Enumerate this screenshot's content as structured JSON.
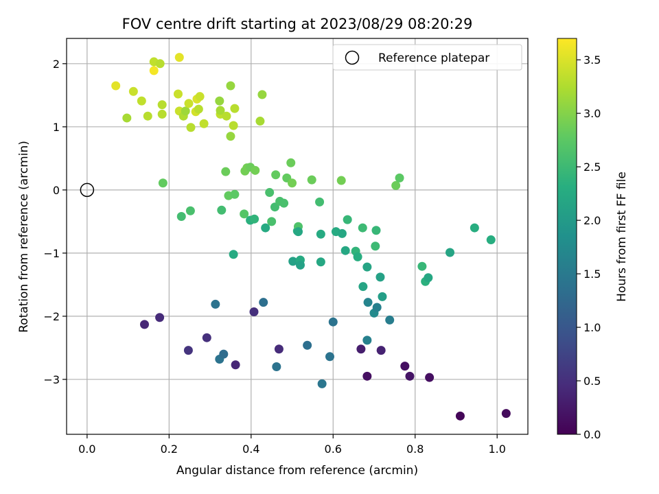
{
  "chart_data": {
    "type": "scatter",
    "title": "FOV centre drift starting at 2023/08/29 08:20:29",
    "xlabel": "Angular distance from reference (arcmin)",
    "ylabel": "Rotation from reference (arcmin)",
    "xlim": [
      -0.05,
      1.075
    ],
    "ylim": [
      -3.87,
      2.4
    ],
    "x_ticks": [
      0.0,
      0.2,
      0.4,
      0.6,
      0.8,
      1.0
    ],
    "x_tick_labels": [
      "0.0",
      "0.2",
      "0.4",
      "0.6",
      "0.8",
      "1.0"
    ],
    "y_ticks": [
      -3,
      -2,
      -1,
      0,
      1,
      2
    ],
    "y_tick_labels": [
      "−3",
      "−2",
      "−1",
      "0",
      "1",
      "2"
    ],
    "grid": true,
    "colormap": "viridis",
    "colorbar": {
      "label": "Hours from first FF file",
      "range": [
        0.0,
        3.7
      ],
      "ticks": [
        0.0,
        0.5,
        1.0,
        1.5,
        2.0,
        2.5,
        3.0,
        3.5
      ],
      "tick_labels": [
        "0.0",
        "0.5",
        "1.0",
        "1.5",
        "2.0",
        "2.5",
        "3.0",
        "3.5"
      ]
    },
    "legend": {
      "placement": "top-right",
      "entries": [
        "Reference platepar"
      ]
    },
    "reference_point": {
      "x": 0.0,
      "y": 0.0,
      "name": "Reference platepar"
    },
    "points": [
      {
        "x": 0.07,
        "y": 1.65,
        "c": 3.55
      },
      {
        "x": 0.097,
        "y": 1.14,
        "c": 3.2
      },
      {
        "x": 0.113,
        "y": 1.56,
        "c": 3.4
      },
      {
        "x": 0.133,
        "y": 1.41,
        "c": 3.35
      },
      {
        "x": 0.148,
        "y": 1.17,
        "c": 3.3
      },
      {
        "x": 0.163,
        "y": 2.03,
        "c": 3.35
      },
      {
        "x": 0.163,
        "y": 1.89,
        "c": 3.65
      },
      {
        "x": 0.178,
        "y": 2.0,
        "c": 3.3
      },
      {
        "x": 0.183,
        "y": 1.35,
        "c": 3.3
      },
      {
        "x": 0.183,
        "y": 1.2,
        "c": 3.3
      },
      {
        "x": 0.222,
        "y": 1.52,
        "c": 3.4
      },
      {
        "x": 0.225,
        "y": 2.1,
        "c": 3.55
      },
      {
        "x": 0.225,
        "y": 1.25,
        "c": 3.4
      },
      {
        "x": 0.235,
        "y": 1.17,
        "c": 3.25
      },
      {
        "x": 0.24,
        "y": 1.25,
        "c": 3.15
      },
      {
        "x": 0.248,
        "y": 1.37,
        "c": 3.4
      },
      {
        "x": 0.253,
        "y": 0.99,
        "c": 3.3
      },
      {
        "x": 0.265,
        "y": 1.24,
        "c": 3.45
      },
      {
        "x": 0.268,
        "y": 1.44,
        "c": 3.5
      },
      {
        "x": 0.272,
        "y": 1.28,
        "c": 3.3
      },
      {
        "x": 0.275,
        "y": 1.48,
        "c": 3.4
      },
      {
        "x": 0.285,
        "y": 1.05,
        "c": 3.35
      },
      {
        "x": 0.323,
        "y": 1.41,
        "c": 3.1
      },
      {
        "x": 0.325,
        "y": 1.2,
        "c": 3.35
      },
      {
        "x": 0.325,
        "y": 1.26,
        "c": 3.2
      },
      {
        "x": 0.34,
        "y": 1.17,
        "c": 3.3
      },
      {
        "x": 0.35,
        "y": 1.65,
        "c": 3.1
      },
      {
        "x": 0.35,
        "y": 0.85,
        "c": 3.1
      },
      {
        "x": 0.357,
        "y": 1.02,
        "c": 3.3
      },
      {
        "x": 0.36,
        "y": 1.29,
        "c": 3.3
      },
      {
        "x": 0.422,
        "y": 1.09,
        "c": 3.2
      },
      {
        "x": 0.427,
        "y": 1.51,
        "c": 3.1
      },
      {
        "x": 0.185,
        "y": 0.11,
        "c": 2.8
      },
      {
        "x": 0.23,
        "y": -0.42,
        "c": 2.55
      },
      {
        "x": 0.252,
        "y": -0.33,
        "c": 2.6
      },
      {
        "x": 0.328,
        "y": -0.32,
        "c": 2.55
      },
      {
        "x": 0.338,
        "y": 0.29,
        "c": 2.85
      },
      {
        "x": 0.345,
        "y": -0.09,
        "c": 2.8
      },
      {
        "x": 0.36,
        "y": -0.07,
        "c": 2.75
      },
      {
        "x": 0.357,
        "y": -1.02,
        "c": 2.25
      },
      {
        "x": 0.383,
        "y": -0.38,
        "c": 2.7
      },
      {
        "x": 0.385,
        "y": 0.3,
        "c": 2.9
      },
      {
        "x": 0.39,
        "y": 0.35,
        "c": 2.9
      },
      {
        "x": 0.398,
        "y": 0.36,
        "c": 2.85
      },
      {
        "x": 0.398,
        "y": -0.48,
        "c": 2.35
      },
      {
        "x": 0.408,
        "y": -0.46,
        "c": 2.4
      },
      {
        "x": 0.41,
        "y": 0.31,
        "c": 2.9
      },
      {
        "x": 0.435,
        "y": -0.6,
        "c": 2.25
      },
      {
        "x": 0.445,
        "y": -0.04,
        "c": 2.6
      },
      {
        "x": 0.45,
        "y": -0.5,
        "c": 2.6
      },
      {
        "x": 0.458,
        "y": -0.27,
        "c": 2.55
      },
      {
        "x": 0.46,
        "y": 0.24,
        "c": 2.8
      },
      {
        "x": 0.47,
        "y": -0.18,
        "c": 2.6
      },
      {
        "x": 0.48,
        "y": -0.21,
        "c": 2.6
      },
      {
        "x": 0.487,
        "y": 0.19,
        "c": 2.8
      },
      {
        "x": 0.497,
        "y": 0.43,
        "c": 2.85
      },
      {
        "x": 0.5,
        "y": 0.11,
        "c": 2.9
      },
      {
        "x": 0.502,
        "y": -1.13,
        "c": 2.1
      },
      {
        "x": 0.513,
        "y": -0.65,
        "c": 2.3
      },
      {
        "x": 0.515,
        "y": -0.58,
        "c": 2.65
      },
      {
        "x": 0.515,
        "y": -0.66,
        "c": 2.2
      },
      {
        "x": 0.52,
        "y": -1.11,
        "c": 2.25
      },
      {
        "x": 0.52,
        "y": -1.19,
        "c": 2.1
      },
      {
        "x": 0.548,
        "y": 0.16,
        "c": 2.85
      },
      {
        "x": 0.567,
        "y": -0.19,
        "c": 2.55
      },
      {
        "x": 0.57,
        "y": -0.7,
        "c": 2.25
      },
      {
        "x": 0.57,
        "y": -1.14,
        "c": 2.2
      },
      {
        "x": 0.62,
        "y": 0.15,
        "c": 2.9
      },
      {
        "x": 0.607,
        "y": -0.66,
        "c": 2.25
      },
      {
        "x": 0.622,
        "y": -0.69,
        "c": 2.2
      },
      {
        "x": 0.63,
        "y": -0.96,
        "c": 2.2
      },
      {
        "x": 0.635,
        "y": -0.47,
        "c": 2.45
      },
      {
        "x": 0.655,
        "y": -0.97,
        "c": 2.4
      },
      {
        "x": 0.66,
        "y": -1.06,
        "c": 2.3
      },
      {
        "x": 0.672,
        "y": -0.6,
        "c": 2.5
      },
      {
        "x": 0.673,
        "y": -1.53,
        "c": 2.15
      },
      {
        "x": 0.683,
        "y": -1.22,
        "c": 2.15
      },
      {
        "x": 0.703,
        "y": -0.89,
        "c": 2.5
      },
      {
        "x": 0.705,
        "y": -0.64,
        "c": 2.45
      },
      {
        "x": 0.715,
        "y": -1.38,
        "c": 2.1
      },
      {
        "x": 0.72,
        "y": -1.69,
        "c": 2.05
      },
      {
        "x": 0.753,
        "y": 0.07,
        "c": 2.85
      },
      {
        "x": 0.762,
        "y": 0.19,
        "c": 2.75
      },
      {
        "x": 0.817,
        "y": -1.21,
        "c": 2.45
      },
      {
        "x": 0.825,
        "y": -1.45,
        "c": 2.35
      },
      {
        "x": 0.832,
        "y": -1.39,
        "c": 2.2
      },
      {
        "x": 0.885,
        "y": -0.99,
        "c": 2.15
      },
      {
        "x": 0.945,
        "y": -0.6,
        "c": 2.3
      },
      {
        "x": 0.985,
        "y": -0.79,
        "c": 2.3
      },
      {
        "x": 0.313,
        "y": -1.81,
        "c": 1.4
      },
      {
        "x": 0.323,
        "y": -2.68,
        "c": 1.4
      },
      {
        "x": 0.333,
        "y": -2.6,
        "c": 1.3
      },
      {
        "x": 0.43,
        "y": -1.78,
        "c": 1.35
      },
      {
        "x": 0.462,
        "y": -2.8,
        "c": 1.4
      },
      {
        "x": 0.537,
        "y": -2.46,
        "c": 1.35
      },
      {
        "x": 0.573,
        "y": -3.07,
        "c": 1.45
      },
      {
        "x": 0.592,
        "y": -2.64,
        "c": 1.4
      },
      {
        "x": 0.6,
        "y": -2.09,
        "c": 1.4
      },
      {
        "x": 0.685,
        "y": -1.78,
        "c": 1.65
      },
      {
        "x": 0.683,
        "y": -2.38,
        "c": 1.6
      },
      {
        "x": 0.7,
        "y": -1.95,
        "c": 1.75
      },
      {
        "x": 0.707,
        "y": -1.86,
        "c": 1.6
      },
      {
        "x": 0.738,
        "y": -2.06,
        "c": 1.55
      },
      {
        "x": 0.14,
        "y": -2.13,
        "c": 0.4
      },
      {
        "x": 0.177,
        "y": -2.02,
        "c": 0.45
      },
      {
        "x": 0.247,
        "y": -2.54,
        "c": 0.55
      },
      {
        "x": 0.292,
        "y": -2.34,
        "c": 0.5
      },
      {
        "x": 0.362,
        "y": -2.77,
        "c": 0.4
      },
      {
        "x": 0.407,
        "y": -1.93,
        "c": 0.5
      },
      {
        "x": 0.468,
        "y": -2.52,
        "c": 0.45
      },
      {
        "x": 0.668,
        "y": -2.52,
        "c": 0.3
      },
      {
        "x": 0.683,
        "y": -2.95,
        "c": 0.15
      },
      {
        "x": 0.717,
        "y": -2.54,
        "c": 0.35
      },
      {
        "x": 0.775,
        "y": -2.79,
        "c": 0.15
      },
      {
        "x": 0.787,
        "y": -2.95,
        "c": 0.2
      },
      {
        "x": 0.835,
        "y": -2.97,
        "c": 0.15
      },
      {
        "x": 0.91,
        "y": -3.58,
        "c": 0.05
      },
      {
        "x": 1.022,
        "y": -3.54,
        "c": 0.1
      }
    ]
  }
}
